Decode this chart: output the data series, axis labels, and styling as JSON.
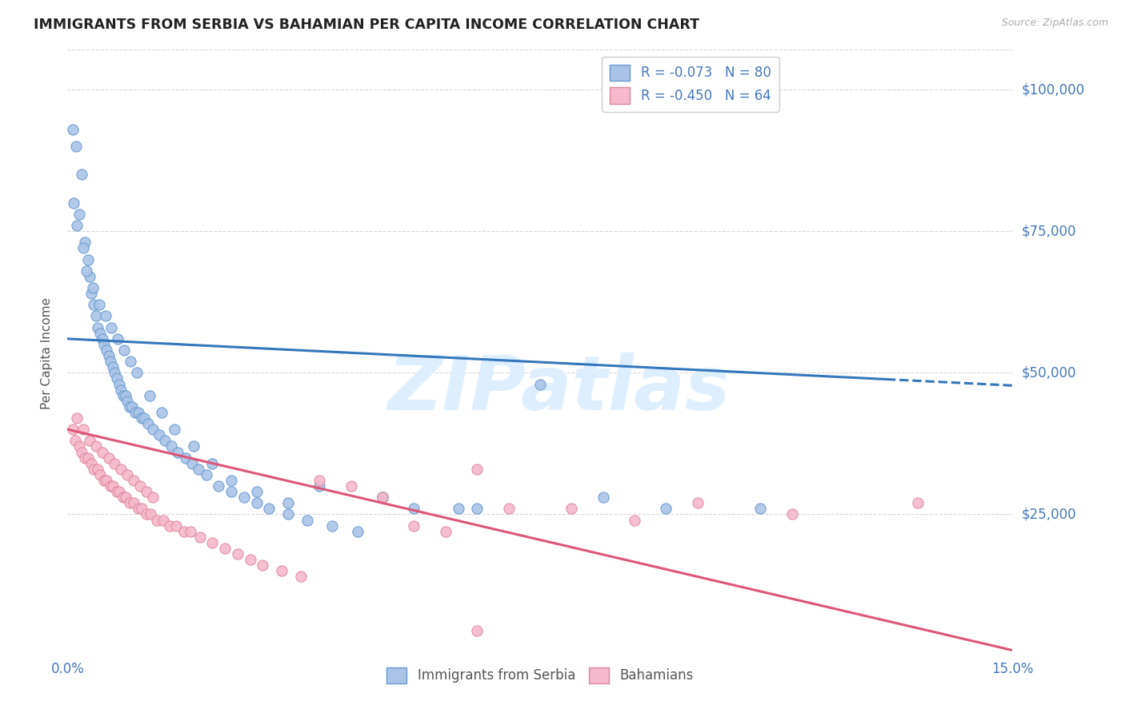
{
  "title": "IMMIGRANTS FROM SERBIA VS BAHAMIAN PER CAPITA INCOME CORRELATION CHART",
  "source_text": "Source: ZipAtlas.com",
  "ylabel": "Per Capita Income",
  "xmin": 0.0,
  "xmax": 15.0,
  "ymin": 0,
  "ymax": 107000,
  "yticks": [
    0,
    25000,
    50000,
    75000,
    100000
  ],
  "ytick_labels_right": [
    "",
    "$25,000",
    "$50,000",
    "$75,000",
    "$100,000"
  ],
  "series1_color": "#aac4e8",
  "series1_edge": "#6699cc",
  "series2_color": "#f5b8cc",
  "series2_edge": "#dd8899",
  "trend1_color": "#3377bb",
  "trend2_color": "#dd5577",
  "grid_color": "#cccccc",
  "tick_color": "#4477bb",
  "background_color": "#ffffff",
  "watermark_color": "#ddeeff",
  "legend_r1": "R = -0.073",
  "legend_n1": "N = 80",
  "legend_r2": "R = -0.450",
  "legend_n2": "N = 64",
  "series1_label": "Immigrants from Serbia",
  "series2_label": "Bahamians",
  "trend1_x_solid_end": 13.0,
  "trend1_b": 56000,
  "trend1_m": -550,
  "trend2_b": 40000,
  "trend2_m": -2600,
  "s1_x": [
    0.08,
    0.14,
    0.22,
    0.18,
    0.28,
    0.32,
    0.35,
    0.38,
    0.42,
    0.45,
    0.48,
    0.52,
    0.55,
    0.58,
    0.62,
    0.65,
    0.68,
    0.72,
    0.75,
    0.78,
    0.82,
    0.85,
    0.88,
    0.92,
    0.95,
    0.98,
    1.02,
    1.08,
    1.12,
    1.18,
    1.22,
    1.28,
    1.35,
    1.45,
    1.55,
    1.65,
    1.75,
    1.88,
    1.98,
    2.08,
    2.2,
    2.4,
    2.6,
    2.8,
    3.0,
    3.2,
    3.5,
    3.8,
    4.2,
    4.6,
    5.0,
    5.5,
    6.2,
    7.5,
    0.1,
    0.15,
    0.25,
    0.3,
    0.4,
    0.5,
    0.6,
    0.7,
    0.8,
    0.9,
    1.0,
    1.1,
    1.3,
    1.5,
    1.7,
    2.0,
    2.3,
    2.6,
    3.0,
    3.5,
    4.0,
    5.0,
    6.5,
    8.5,
    9.5,
    11.0
  ],
  "s1_y": [
    93000,
    90000,
    85000,
    78000,
    73000,
    70000,
    67000,
    64000,
    62000,
    60000,
    58000,
    57000,
    56000,
    55000,
    54000,
    53000,
    52000,
    51000,
    50000,
    49000,
    48000,
    47000,
    46000,
    46000,
    45000,
    44000,
    44000,
    43000,
    43000,
    42000,
    42000,
    41000,
    40000,
    39000,
    38000,
    37000,
    36000,
    35000,
    34000,
    33000,
    32000,
    30000,
    29000,
    28000,
    27000,
    26000,
    25000,
    24000,
    23000,
    22000,
    28000,
    26000,
    26000,
    48000,
    80000,
    76000,
    72000,
    68000,
    65000,
    62000,
    60000,
    58000,
    56000,
    54000,
    52000,
    50000,
    46000,
    43000,
    40000,
    37000,
    34000,
    31000,
    29000,
    27000,
    30000,
    28000,
    26000,
    28000,
    26000,
    26000
  ],
  "s2_x": [
    0.08,
    0.12,
    0.18,
    0.22,
    0.28,
    0.32,
    0.38,
    0.42,
    0.48,
    0.52,
    0.58,
    0.62,
    0.68,
    0.72,
    0.78,
    0.82,
    0.88,
    0.92,
    0.98,
    1.05,
    1.12,
    1.18,
    1.25,
    1.32,
    1.42,
    1.52,
    1.62,
    1.72,
    1.85,
    1.95,
    2.1,
    2.3,
    2.5,
    2.7,
    2.9,
    3.1,
    3.4,
    3.7,
    4.0,
    4.5,
    5.0,
    5.5,
    6.0,
    6.5,
    7.0,
    8.0,
    9.0,
    10.0,
    11.5,
    13.5,
    0.15,
    0.25,
    0.35,
    0.45,
    0.55,
    0.65,
    0.75,
    0.85,
    0.95,
    1.05,
    1.15,
    1.25,
    1.35,
    6.5
  ],
  "s2_y": [
    40000,
    38000,
    37000,
    36000,
    35000,
    35000,
    34000,
    33000,
    33000,
    32000,
    31000,
    31000,
    30000,
    30000,
    29000,
    29000,
    28000,
    28000,
    27000,
    27000,
    26000,
    26000,
    25000,
    25000,
    24000,
    24000,
    23000,
    23000,
    22000,
    22000,
    21000,
    20000,
    19000,
    18000,
    17000,
    16000,
    15000,
    14000,
    31000,
    30000,
    28000,
    23000,
    22000,
    33000,
    26000,
    26000,
    24000,
    27000,
    25000,
    27000,
    42000,
    40000,
    38000,
    37000,
    36000,
    35000,
    34000,
    33000,
    32000,
    31000,
    30000,
    29000,
    28000,
    4500
  ]
}
